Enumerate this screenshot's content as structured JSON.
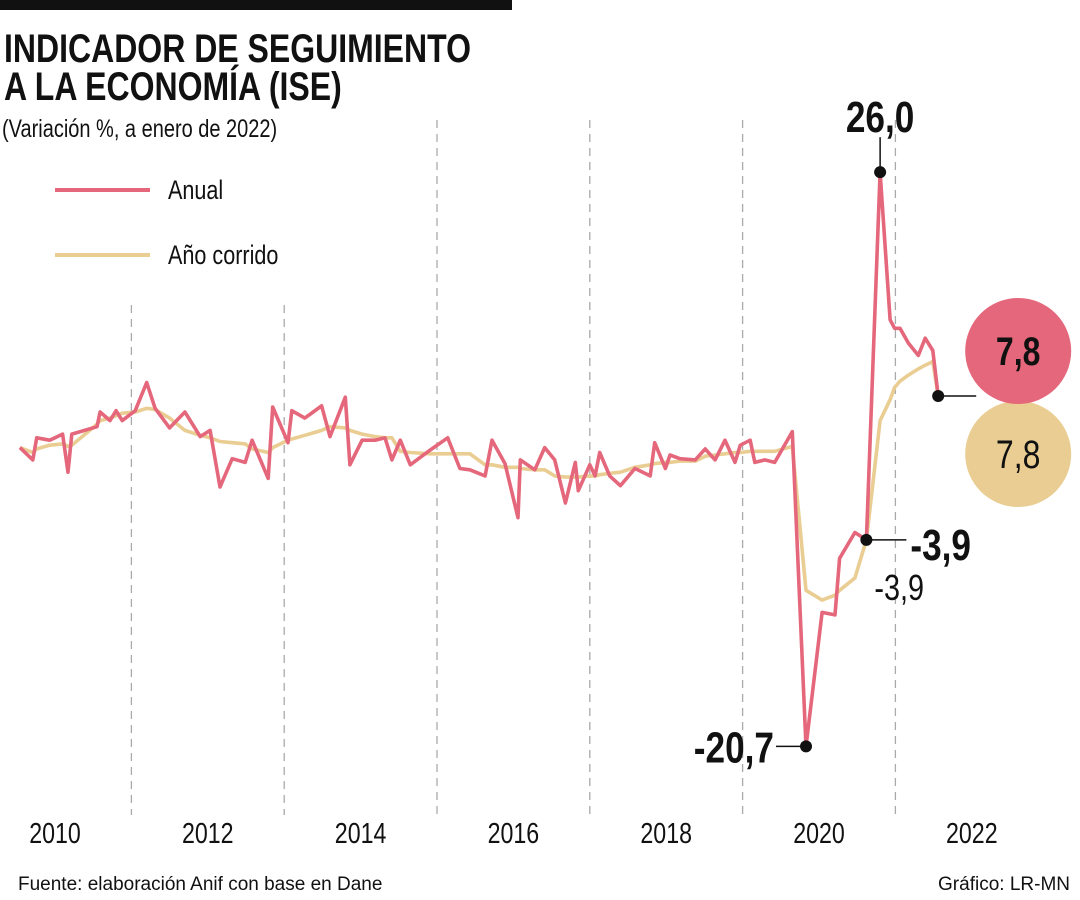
{
  "chart_data": {
    "type": "line",
    "title": [
      "INDICADOR DE SEGUIMIENTO",
      "A LA ECONOMÍA (ISE)"
    ],
    "subtitle": "(Variación %, a enero de 2022)",
    "source": "Fuente: elaboración Anif con base en Dane",
    "credit": "Gráfico: LR-MN",
    "legend": "upper left",
    "xlim": [
      2010,
      2022.5
    ],
    "ylim": [
      -24,
      30
    ],
    "xticks": [
      {
        "value": 2010.5,
        "label": "2010"
      },
      {
        "value": 2012.5,
        "label": "2012"
      },
      {
        "value": 2014.5,
        "label": "2014"
      },
      {
        "value": 2016.5,
        "label": "2016"
      },
      {
        "value": 2018.5,
        "label": "2018"
      },
      {
        "value": 2020.5,
        "label": "2020"
      },
      {
        "value": 2022.5,
        "label": "2022"
      }
    ],
    "grid": true,
    "x": [
      2010.04,
      2010.21,
      2010.26,
      2010.43,
      2010.6,
      2010.67,
      2010.72,
      2011.05,
      2011.09,
      2011.22,
      2011.3,
      2011.38,
      2011.55,
      2011.7,
      2011.81,
      2012.0,
      2012.2,
      2012.4,
      2012.53,
      2012.66,
      2012.82,
      2012.99,
      2013.08,
      2013.29,
      2013.35,
      2013.55,
      2013.6,
      2013.77,
      2013.88,
      2013.99,
      2014.1,
      2014.3,
      2014.36,
      2014.52,
      2014.69,
      2014.82,
      2014.91,
      2015.02,
      2015.15,
      2015.41,
      2015.64,
      2015.8,
      2015.93,
      2016.13,
      2016.22,
      2016.39,
      2016.56,
      2016.59,
      2016.78,
      2016.91,
      2017.04,
      2017.18,
      2017.31,
      2017.35,
      2017.5,
      2017.57,
      2017.63,
      2017.76,
      2017.9,
      2018.09,
      2018.29,
      2018.35,
      2018.49,
      2018.55,
      2018.68,
      2018.88,
      2019.01,
      2019.14,
      2019.27,
      2019.4,
      2019.47,
      2019.6,
      2019.66,
      2019.79,
      2019.92,
      2020.15,
      2020.33,
      2020.54,
      2020.71,
      2020.77,
      2020.97,
      2021.12,
      2021.3,
      2021.43,
      2021.49,
      2021.56,
      2021.67,
      2021.8,
      2021.89,
      2021.99,
      2022.06
    ],
    "series": [
      {
        "name": "Año corrido",
        "color": "#e9cd92",
        "values": [
          3.6,
          3.2,
          3.5,
          3.8,
          3.9,
          3.7,
          3.8,
          5.5,
          5.8,
          6.0,
          6.2,
          6.4,
          6.5,
          6.8,
          6.7,
          6.0,
          5.0,
          4.6,
          4.4,
          4.1,
          4.0,
          3.9,
          3.5,
          3.2,
          3.6,
          4.2,
          4.3,
          4.6,
          4.8,
          5.0,
          5.3,
          5.2,
          5.0,
          4.7,
          4.5,
          4.4,
          4.4,
          3.3,
          3.2,
          3.1,
          3.1,
          3.1,
          3.1,
          2.2,
          2.2,
          2.0,
          2.0,
          1.9,
          1.8,
          1.8,
          1.3,
          1.2,
          1.2,
          1.2,
          1.3,
          1.3,
          1.4,
          1.5,
          1.6,
          2.0,
          2.2,
          2.3,
          2.4,
          2.4,
          2.5,
          2.5,
          2.9,
          3.0,
          3.1,
          3.2,
          3.2,
          3.3,
          3.3,
          3.3,
          3.3,
          3.7,
          -8.0,
          -8.8,
          -8.4,
          -8.0,
          -7.0,
          -3.9,
          5.8,
          7.5,
          8.5,
          9.0,
          9.5,
          10.0,
          10.3,
          10.6,
          7.8
        ],
        "value_labels": [
          null,
          null,
          null,
          null,
          null,
          null,
          null,
          null,
          null,
          null,
          null,
          null,
          null,
          null,
          null,
          null,
          null,
          null,
          null,
          null,
          null,
          null,
          null,
          null,
          null,
          null,
          null,
          null,
          null,
          null,
          null,
          null,
          null,
          null,
          null,
          null,
          null,
          null,
          null,
          null,
          null,
          null,
          null,
          null,
          null,
          null,
          null,
          null,
          null,
          null,
          null,
          null,
          null,
          null,
          null,
          null,
          null,
          null,
          null,
          null,
          null,
          null,
          null,
          null,
          null,
          null,
          null,
          null,
          null,
          null,
          null,
          null,
          null,
          null,
          null,
          null,
          null,
          null,
          null,
          null,
          null,
          "-3,9",
          null,
          null,
          null,
          null,
          null,
          null,
          null,
          null,
          "7,8"
        ]
      },
      {
        "name": "Anual",
        "color": "#e5677b",
        "values": [
          3.6,
          2.6,
          4.4,
          4.2,
          4.7,
          1.6,
          4.7,
          5.3,
          6.5,
          5.8,
          6.6,
          5.8,
          6.6,
          8.9,
          6.8,
          5.2,
          6.5,
          4.5,
          5.0,
          0.4,
          2.7,
          2.4,
          4.2,
          1.1,
          6.9,
          4.0,
          6.6,
          6.0,
          6.5,
          7.0,
          4.5,
          7.7,
          2.2,
          4.2,
          4.2,
          4.4,
          2.6,
          4.2,
          2.2,
          3.4,
          4.4,
          1.9,
          1.8,
          1.3,
          4.2,
          2.3,
          -2.1,
          2.6,
          1.8,
          3.6,
          2.6,
          -0.9,
          2.4,
          0.1,
          2.2,
          1.3,
          3.2,
          1.3,
          0.5,
          1.9,
          1.3,
          4.0,
          1.9,
          3.0,
          2.7,
          2.6,
          3.5,
          2.6,
          4.2,
          2.4,
          3.8,
          4.2,
          2.4,
          2.6,
          2.4,
          4.9,
          -20.7,
          -9.8,
          -10.0,
          -5.4,
          -3.3,
          -3.9,
          26.0,
          14.0,
          13.3,
          13.3,
          12.1,
          11.1,
          12.5,
          11.5,
          7.8
        ],
        "value_labels": [
          null,
          null,
          null,
          null,
          null,
          null,
          null,
          null,
          null,
          null,
          null,
          null,
          null,
          null,
          null,
          null,
          null,
          null,
          null,
          null,
          null,
          null,
          null,
          null,
          null,
          null,
          null,
          null,
          null,
          null,
          null,
          null,
          null,
          null,
          null,
          null,
          null,
          null,
          null,
          null,
          null,
          null,
          null,
          null,
          null,
          null,
          null,
          null,
          null,
          null,
          null,
          null,
          null,
          null,
          null,
          null,
          null,
          null,
          null,
          null,
          null,
          null,
          null,
          null,
          null,
          null,
          null,
          null,
          null,
          null,
          null,
          null,
          null,
          null,
          null,
          null,
          "-20,7",
          null,
          null,
          null,
          null,
          "-3,9",
          "26,0",
          null,
          null,
          null,
          null,
          null,
          null,
          null,
          "7,8"
        ]
      }
    ]
  }
}
